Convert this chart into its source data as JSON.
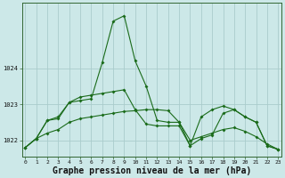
{
  "xlabel": "Graphe pression niveau de la mer (hPa)",
  "background_color": "#cce8e8",
  "grid_color": "#aacccc",
  "line_color": "#1a6b1a",
  "x_hours": [
    0,
    1,
    2,
    3,
    4,
    5,
    6,
    7,
    8,
    9,
    10,
    11,
    12,
    13,
    14,
    15,
    16,
    17,
    18,
    19,
    20,
    21,
    22,
    23
  ],
  "series1": [
    1021.8,
    1022.05,
    1022.2,
    1022.3,
    1022.5,
    1022.6,
    1022.65,
    1022.7,
    1022.75,
    1022.8,
    1022.82,
    1022.85,
    1022.85,
    1022.82,
    1022.5,
    1022.0,
    1022.1,
    1022.2,
    1022.3,
    1022.35,
    1022.25,
    1022.1,
    1021.9,
    1021.75
  ],
  "series2": [
    1021.8,
    1022.05,
    1022.55,
    1022.6,
    1023.05,
    1023.1,
    1023.15,
    1024.15,
    1025.3,
    1025.45,
    1024.2,
    1023.5,
    1022.55,
    1022.5,
    1022.5,
    1021.85,
    1022.05,
    1022.15,
    1022.75,
    1022.85,
    1022.65,
    1022.5,
    1021.85,
    1021.75
  ],
  "series3": [
    1021.8,
    1022.05,
    1022.55,
    1022.65,
    1023.05,
    1023.2,
    1023.25,
    1023.3,
    1023.35,
    1023.4,
    1022.85,
    1022.45,
    1022.4,
    1022.4,
    1022.4,
    1021.85,
    1022.65,
    1022.85,
    1022.95,
    1022.85,
    1022.65,
    1022.5,
    1021.85,
    1021.75
  ],
  "ylim_min": 1021.55,
  "ylim_max": 1025.8,
  "yticks": [
    1022,
    1023,
    1024
  ],
  "marker_size": 2.0,
  "linewidth": 0.8,
  "tick_fontsize": 4.5,
  "xlabel_fontsize": 7.0
}
